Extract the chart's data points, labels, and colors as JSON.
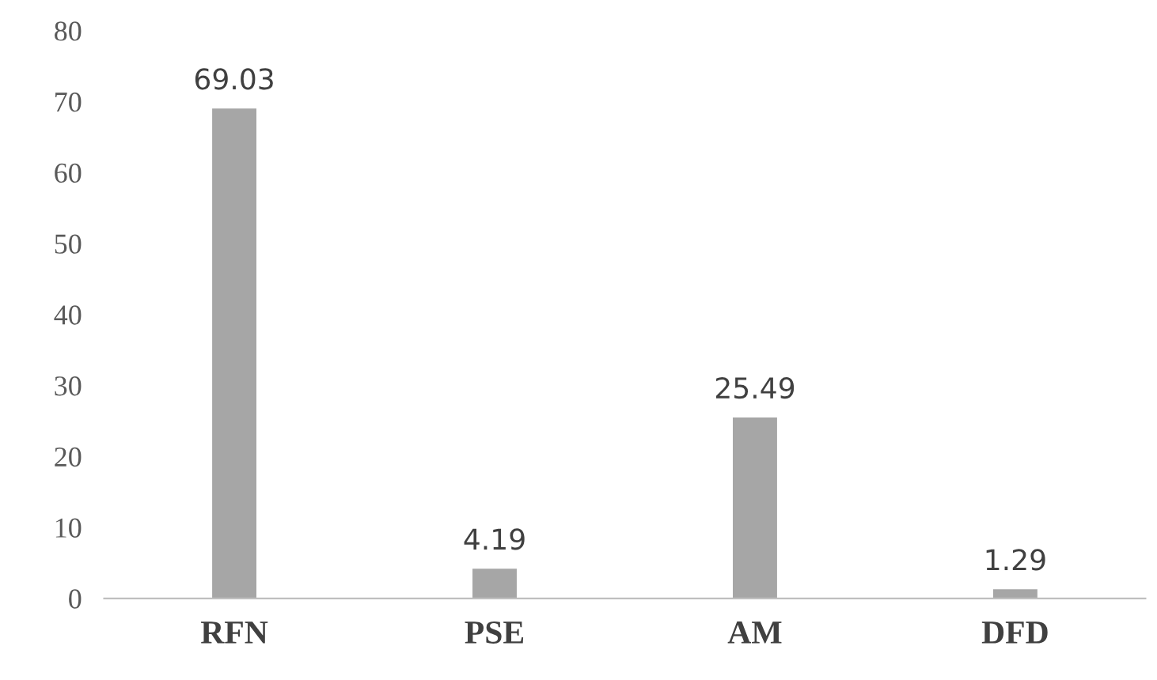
{
  "chart_data": {
    "type": "bar",
    "categories": [
      "RFN",
      "PSE",
      "AM",
      "DFD"
    ],
    "values": [
      69.03,
      4.19,
      25.49,
      1.29
    ],
    "color": "#a6a6a6",
    "ylim": [
      0,
      80
    ],
    "yticks": [
      0,
      10,
      20,
      30,
      40,
      50,
      60,
      70,
      80
    ],
    "grid": false,
    "data_labels": true
  }
}
